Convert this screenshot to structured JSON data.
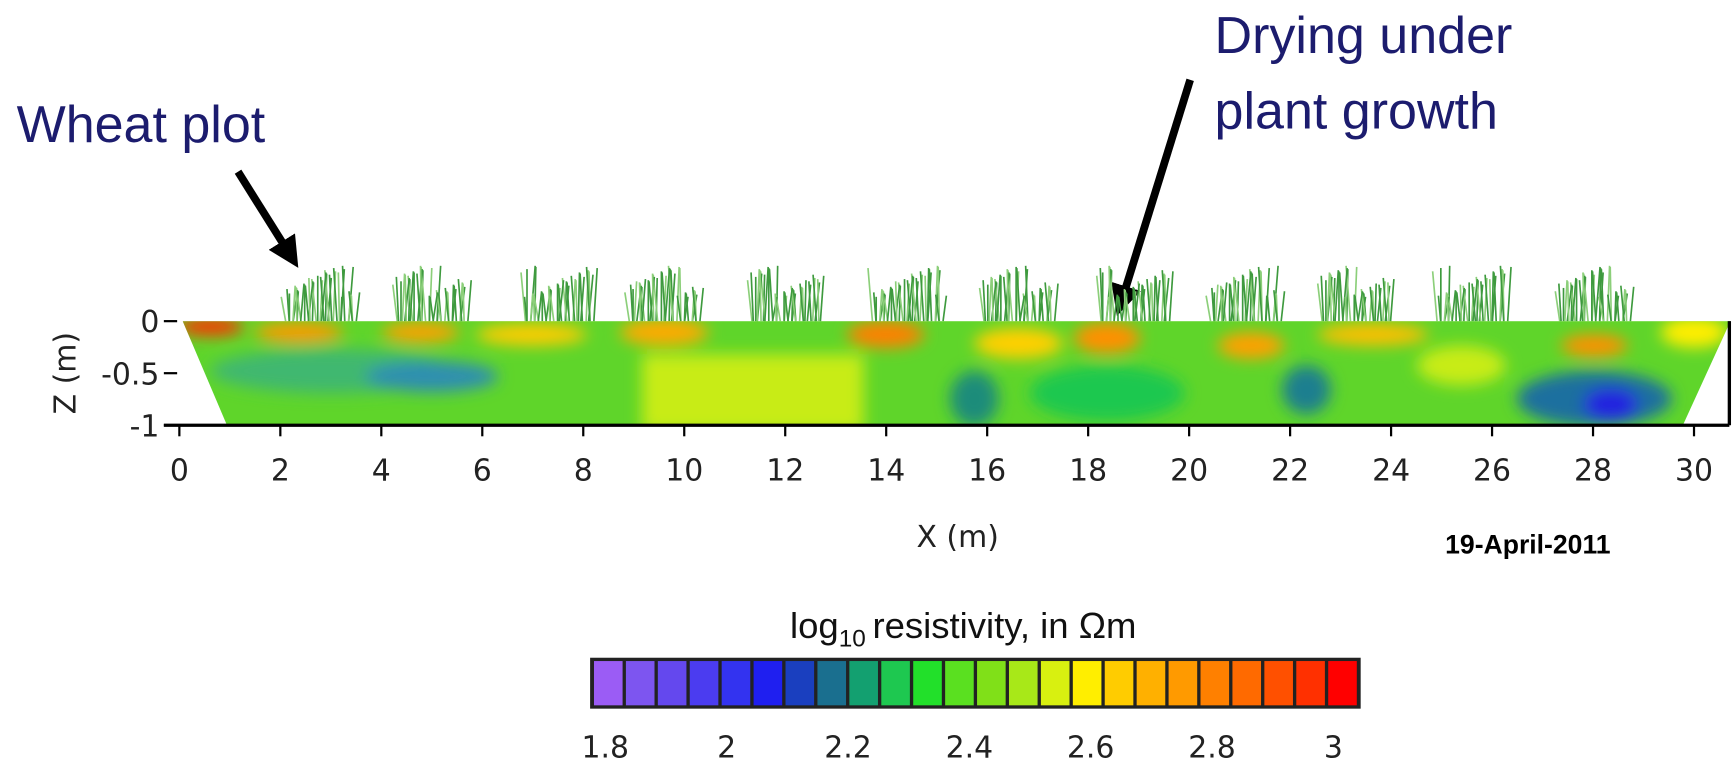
{
  "annotations": {
    "wheat": "Wheat plot",
    "drying": [
      "Drying under",
      "plant growth"
    ]
  },
  "chart_data": {
    "type": "contour",
    "xlabel": "X (m)",
    "ylabel": "Z (m)",
    "xlim": [
      0,
      30.7
    ],
    "ylim": [
      -1,
      0
    ],
    "xticks": [
      0,
      2,
      4,
      6,
      8,
      10,
      12,
      14,
      16,
      18,
      20,
      22,
      24,
      26,
      28,
      30
    ],
    "yticks": [
      0,
      -0.5,
      -1
    ],
    "date": "19-April-2011",
    "colorbar": {
      "label_prefix": "log",
      "label_subscript": "10",
      "label_rest": "resistivity, in Ωm",
      "lim": [
        1.775,
        3.045
      ],
      "ticks": [
        1.8,
        2,
        2.2,
        2.4,
        2.6,
        2.8,
        3
      ],
      "colors": [
        "#9b5cf5",
        "#7d55f0",
        "#6448ee",
        "#4b3cf0",
        "#3333f0",
        "#1f1ff0",
        "#1a3fbf",
        "#1a6f8f",
        "#13a070",
        "#1ec850",
        "#22e02a",
        "#5ae020",
        "#80e018",
        "#a8e818",
        "#d8f010",
        "#ffee00",
        "#ffcc00",
        "#ffb000",
        "#ff9a00",
        "#ff8000",
        "#ff6a00",
        "#ff5000",
        "#ff3000",
        "#ff0000"
      ]
    }
  }
}
